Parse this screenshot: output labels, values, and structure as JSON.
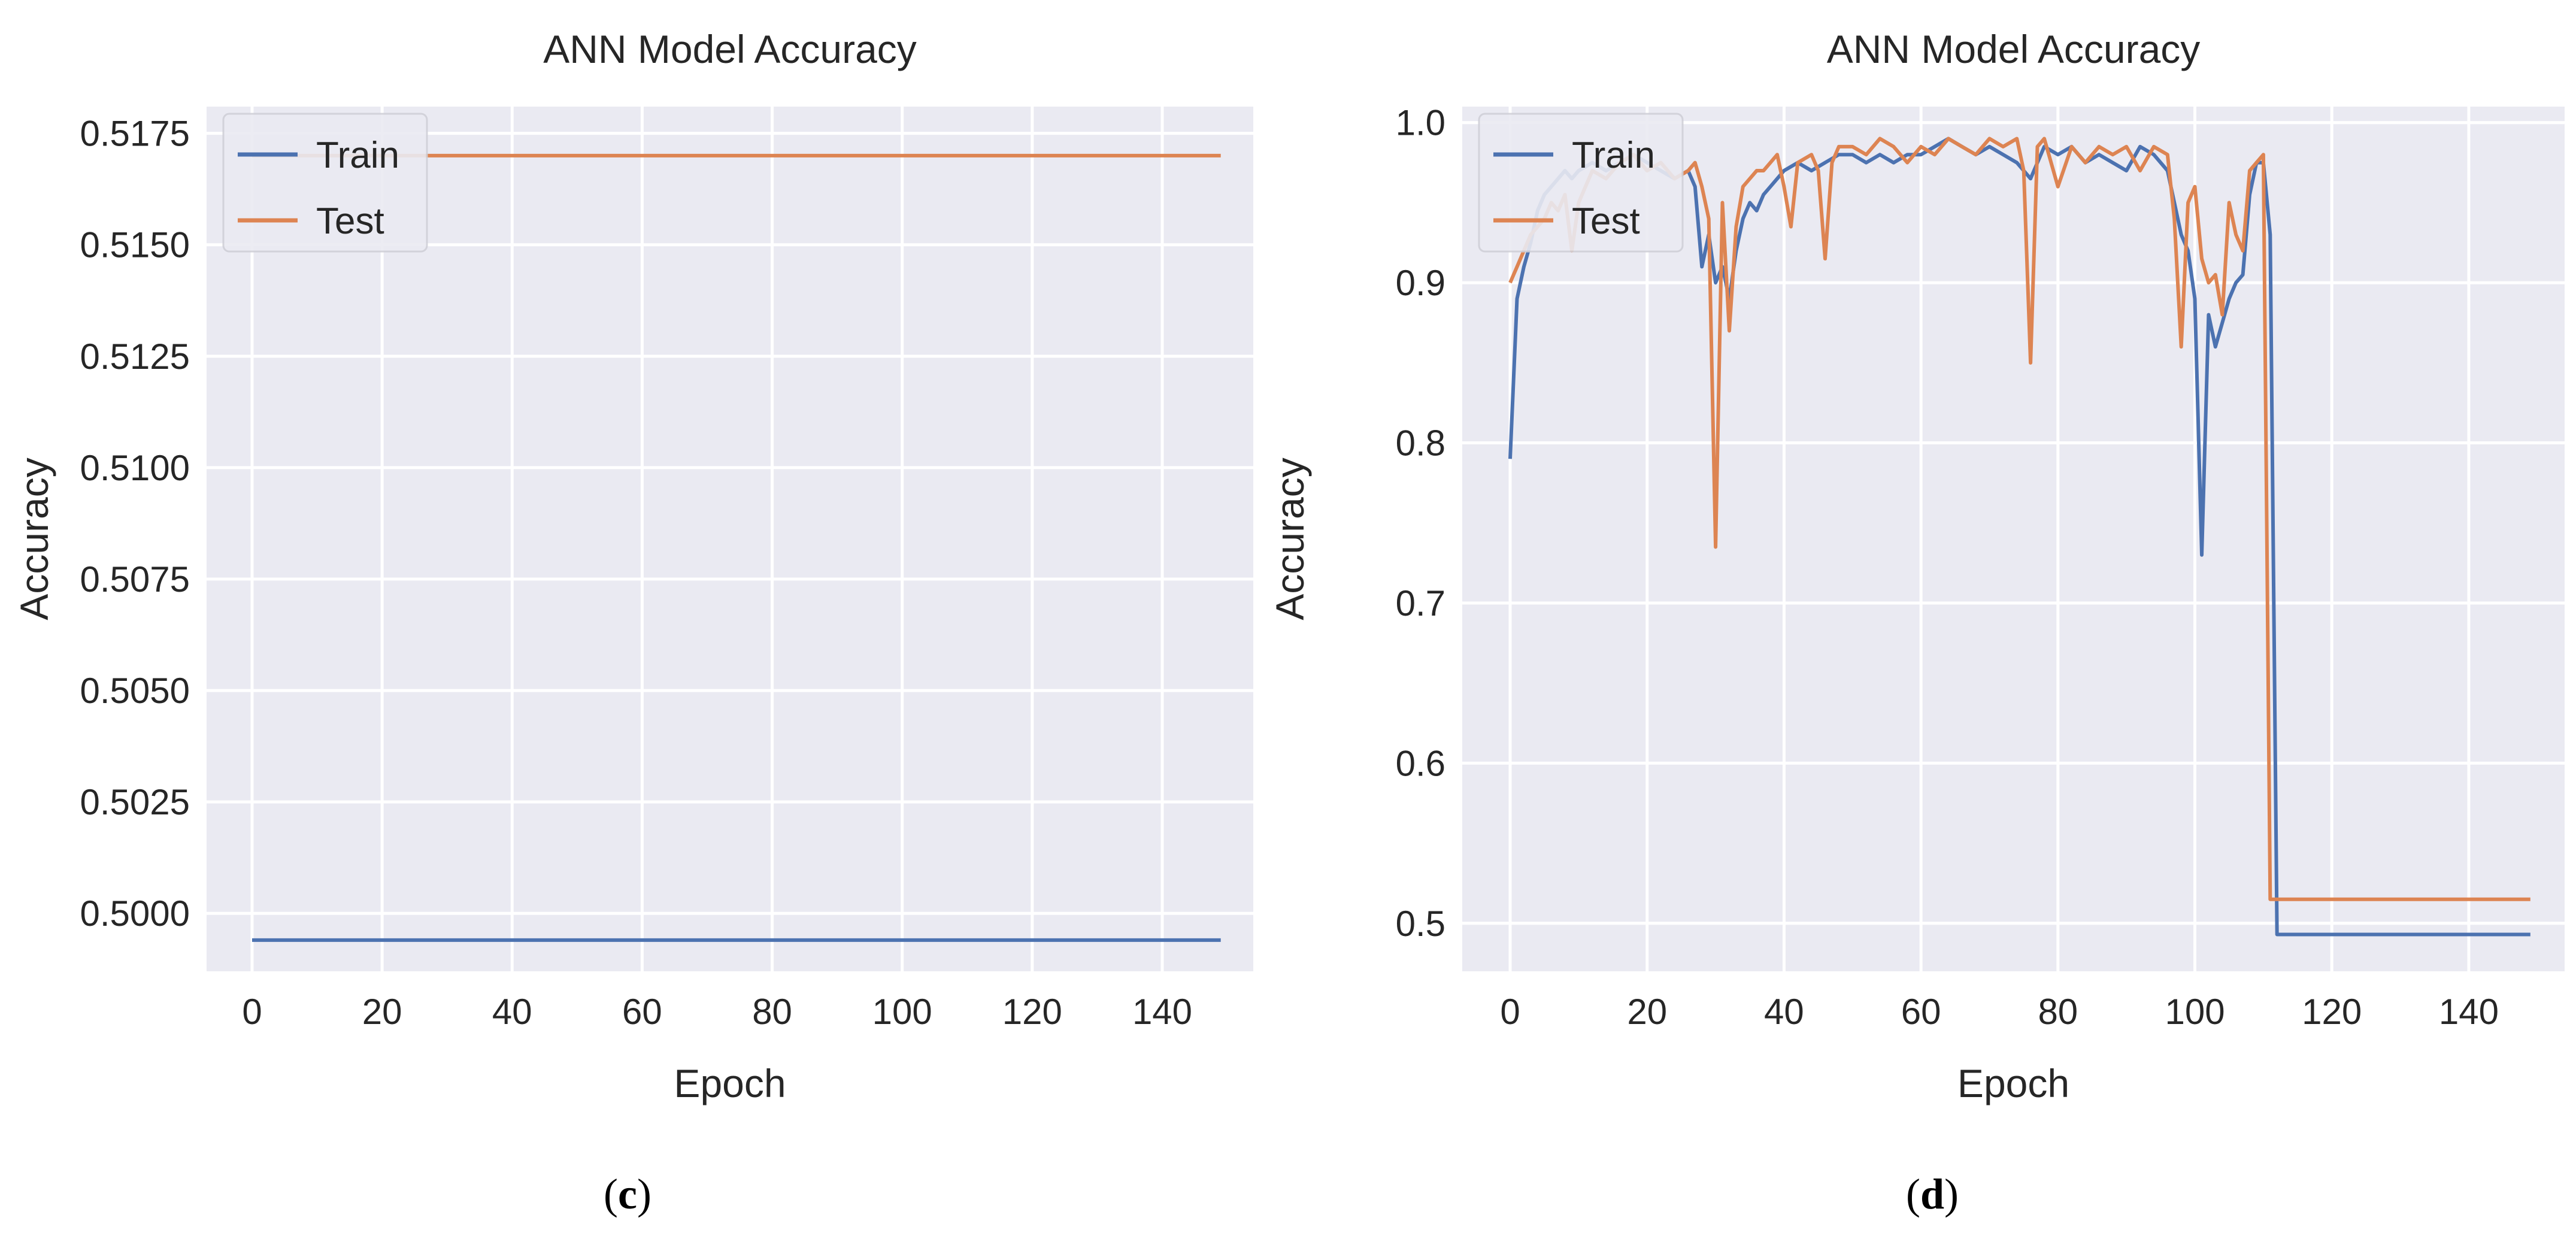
{
  "colors": {
    "background": "#eaeaf2",
    "grid": "#ffffff",
    "train": "#4c72b0",
    "test": "#dd8452"
  },
  "chart_data": [
    {
      "panel": "c",
      "type": "line",
      "title": "ANN Model Accuracy",
      "xlabel": "Epoch",
      "ylabel": "Accuracy",
      "xlim": [
        -7,
        154
      ],
      "ylim": [
        0.4987,
        0.5181
      ],
      "xticks": [
        0,
        20,
        40,
        60,
        80,
        100,
        120,
        140
      ],
      "xtick_labels": [
        "0",
        "20",
        "40",
        "60",
        "80",
        "100",
        "120",
        "140"
      ],
      "yticks": [
        0.5,
        0.5025,
        0.505,
        0.5075,
        0.51,
        0.5125,
        0.515,
        0.5175
      ],
      "ytick_labels": [
        "0.5000",
        "0.5025",
        "0.5050",
        "0.5075",
        "0.5100",
        "0.5125",
        "0.5150",
        "0.5175"
      ],
      "legend": {
        "location": "upper-left",
        "entries": [
          "Train",
          "Test"
        ]
      },
      "series": [
        {
          "name": "Train",
          "color_key": "train",
          "x": [
            0,
            149
          ],
          "y": [
            0.4994,
            0.4994
          ]
        },
        {
          "name": "Test",
          "color_key": "test",
          "x": [
            0,
            149
          ],
          "y": [
            0.517,
            0.517
          ]
        }
      ],
      "caption": {
        "open": "(",
        "letter": "c",
        "close": ")"
      }
    },
    {
      "panel": "d",
      "type": "line",
      "title": "ANN Model Accuracy",
      "xlabel": "Epoch",
      "ylabel": "Accuracy",
      "xlim": [
        -7,
        154
      ],
      "ylim": [
        0.47,
        1.01
      ],
      "xticks": [
        0,
        20,
        40,
        60,
        80,
        100,
        120,
        140
      ],
      "xtick_labels": [
        "0",
        "20",
        "40",
        "60",
        "80",
        "100",
        "120",
        "140"
      ],
      "yticks": [
        0.5,
        0.6,
        0.7,
        0.8,
        0.9,
        1.0
      ],
      "ytick_labels": [
        "0.5",
        "0.6",
        "0.7",
        "0.8",
        "0.9",
        "1.0"
      ],
      "legend": {
        "location": "upper-left",
        "entries": [
          "Train",
          "Test"
        ]
      },
      "series": [
        {
          "name": "Train",
          "color_key": "train",
          "x": [
            0,
            1,
            2,
            3,
            4,
            5,
            6,
            7,
            8,
            9,
            10,
            12,
            14,
            16,
            18,
            20,
            22,
            24,
            26,
            27,
            28,
            29,
            30,
            31,
            32,
            33,
            34,
            35,
            36,
            37,
            38,
            40,
            42,
            44,
            46,
            48,
            50,
            52,
            54,
            56,
            58,
            60,
            62,
            64,
            66,
            68,
            70,
            72,
            74,
            76,
            78,
            80,
            82,
            84,
            86,
            88,
            90,
            92,
            94,
            96,
            98,
            99,
            100,
            101,
            102,
            103,
            104,
            105,
            106,
            107,
            108,
            109,
            110,
            111,
            112,
            149
          ],
          "y": [
            0.79,
            0.89,
            0.91,
            0.925,
            0.945,
            0.955,
            0.96,
            0.965,
            0.97,
            0.965,
            0.97,
            0.975,
            0.97,
            0.975,
            0.98,
            0.975,
            0.97,
            0.965,
            0.97,
            0.96,
            0.91,
            0.93,
            0.9,
            0.91,
            0.89,
            0.92,
            0.94,
            0.95,
            0.945,
            0.955,
            0.96,
            0.97,
            0.975,
            0.97,
            0.975,
            0.98,
            0.98,
            0.975,
            0.98,
            0.975,
            0.98,
            0.98,
            0.985,
            0.99,
            0.985,
            0.98,
            0.985,
            0.98,
            0.975,
            0.965,
            0.985,
            0.98,
            0.985,
            0.975,
            0.98,
            0.975,
            0.97,
            0.985,
            0.98,
            0.97,
            0.93,
            0.92,
            0.89,
            0.73,
            0.88,
            0.86,
            0.875,
            0.89,
            0.9,
            0.905,
            0.955,
            0.975,
            0.975,
            0.93,
            0.493,
            0.493
          ]
        },
        {
          "name": "Test",
          "color_key": "test",
          "x": [
            0,
            1,
            2,
            3,
            4,
            5,
            6,
            7,
            8,
            9,
            10,
            11,
            12,
            14,
            16,
            18,
            20,
            22,
            24,
            26,
            27,
            28,
            29,
            30,
            31,
            32,
            33,
            34,
            35,
            36,
            37,
            38,
            39,
            40,
            41,
            42,
            44,
            45,
            46,
            47,
            48,
            50,
            52,
            54,
            56,
            58,
            60,
            62,
            64,
            66,
            68,
            70,
            72,
            74,
            75,
            76,
            77,
            78,
            80,
            82,
            84,
            86,
            88,
            90,
            92,
            94,
            96,
            97,
            98,
            99,
            100,
            101,
            102,
            103,
            104,
            105,
            106,
            107,
            108,
            109,
            110,
            111,
            149
          ],
          "y": [
            0.9,
            0.91,
            0.92,
            0.93,
            0.935,
            0.94,
            0.95,
            0.945,
            0.955,
            0.92,
            0.95,
            0.96,
            0.97,
            0.965,
            0.975,
            0.98,
            0.97,
            0.975,
            0.965,
            0.97,
            0.975,
            0.96,
            0.94,
            0.735,
            0.95,
            0.87,
            0.935,
            0.96,
            0.965,
            0.97,
            0.97,
            0.975,
            0.98,
            0.96,
            0.935,
            0.975,
            0.98,
            0.97,
            0.915,
            0.975,
            0.985,
            0.985,
            0.98,
            0.99,
            0.985,
            0.975,
            0.985,
            0.98,
            0.99,
            0.985,
            0.98,
            0.99,
            0.985,
            0.99,
            0.97,
            0.85,
            0.985,
            0.99,
            0.96,
            0.985,
            0.975,
            0.985,
            0.98,
            0.985,
            0.97,
            0.985,
            0.98,
            0.94,
            0.86,
            0.95,
            0.96,
            0.915,
            0.9,
            0.905,
            0.88,
            0.95,
            0.93,
            0.92,
            0.97,
            0.975,
            0.98,
            0.515,
            0.515
          ]
        }
      ],
      "caption": {
        "open": "(",
        "letter": "d",
        "close": ")"
      }
    }
  ]
}
